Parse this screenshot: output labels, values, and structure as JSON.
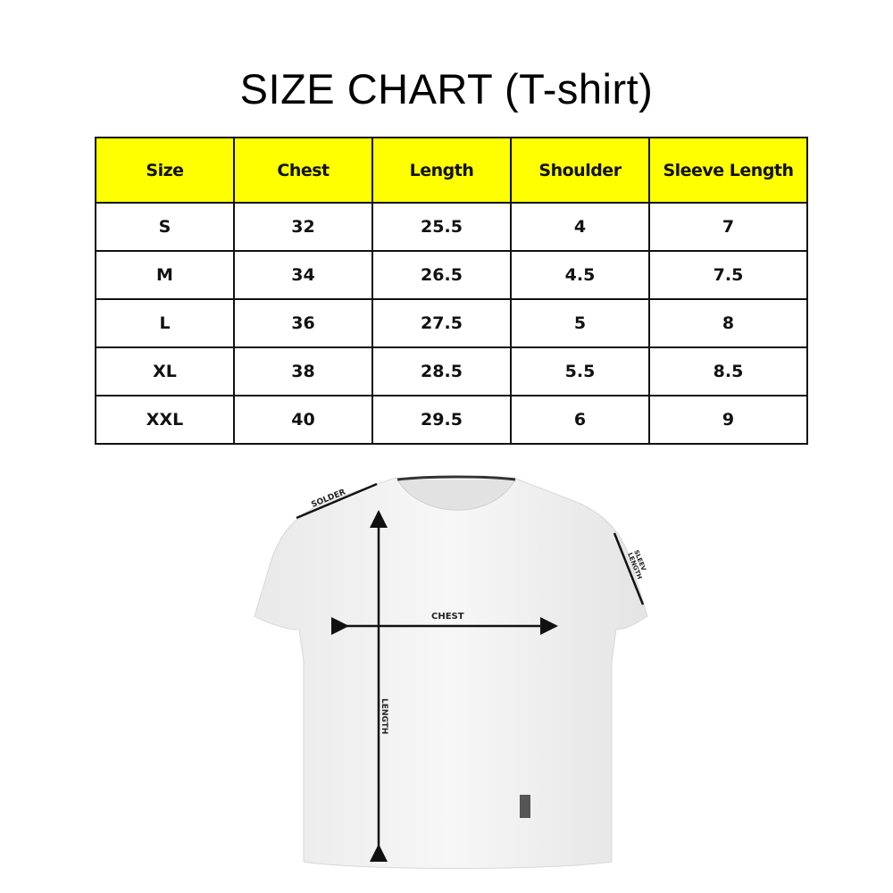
{
  "title": "SIZE CHART (T-shirt)",
  "table": {
    "headers": [
      "Size",
      "Chest",
      "Length",
      "Shoulder",
      "Sleeve Length"
    ],
    "rows": [
      [
        "S",
        "32",
        "25.5",
        "4",
        "7"
      ],
      [
        "M",
        "34",
        "26.5",
        "4.5",
        "7.5"
      ],
      [
        "L",
        "36",
        "27.5",
        "5",
        "8"
      ],
      [
        "XL",
        "38",
        "28.5",
        "5.5",
        "8.5"
      ],
      [
        "XXL",
        "40",
        "29.5",
        "6",
        "9"
      ]
    ],
    "header_color": "#ffff00"
  },
  "diagram": {
    "shoulder_label": "SOLDER",
    "chest_label": "CHEST",
    "length_label": "LENGTH",
    "sleeve_label_1": "SLEEV",
    "sleeve_label_2": "LENGTH"
  }
}
